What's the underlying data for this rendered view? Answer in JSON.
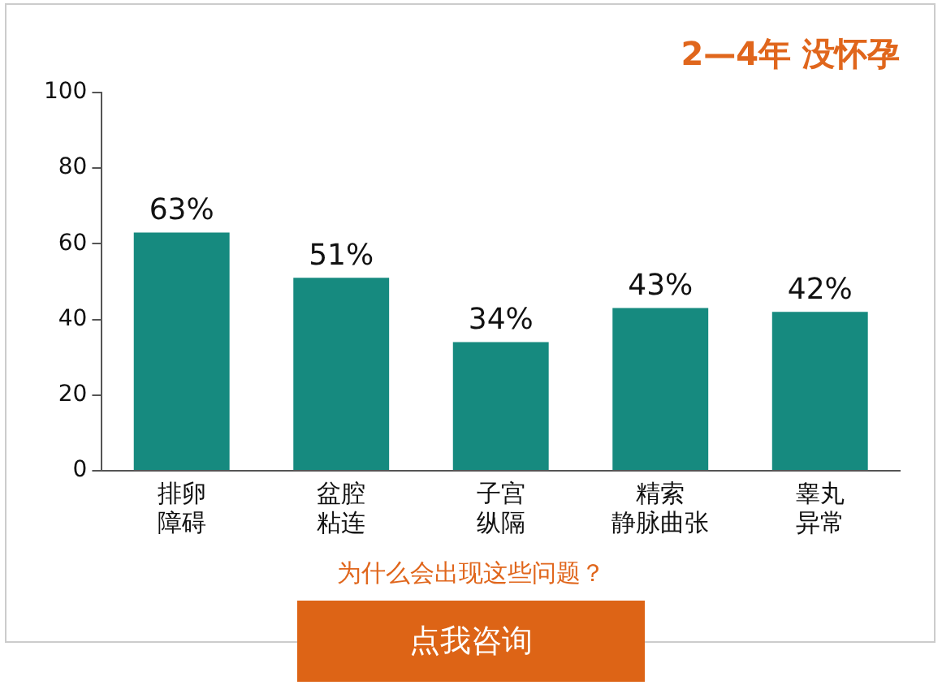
{
  "chart_data": {
    "type": "bar",
    "title": "2—4年 没怀孕",
    "categories": [
      "排卵障碍",
      "盆腔粘连",
      "子宫纵隔",
      "精索静脉曲张",
      "睾丸异常"
    ],
    "values": [
      63,
      51,
      34,
      43,
      42
    ],
    "value_labels": [
      "63%",
      "51%",
      "34%",
      "43%",
      "42%"
    ],
    "color": "#168a7f",
    "ylim": [
      0,
      100
    ],
    "yticks": [
      0,
      20,
      40,
      60,
      80,
      100
    ],
    "grid": false,
    "legend": false,
    "annotations": [
      "为什么会出现这些问题？",
      "点我咨询"
    ]
  }
}
